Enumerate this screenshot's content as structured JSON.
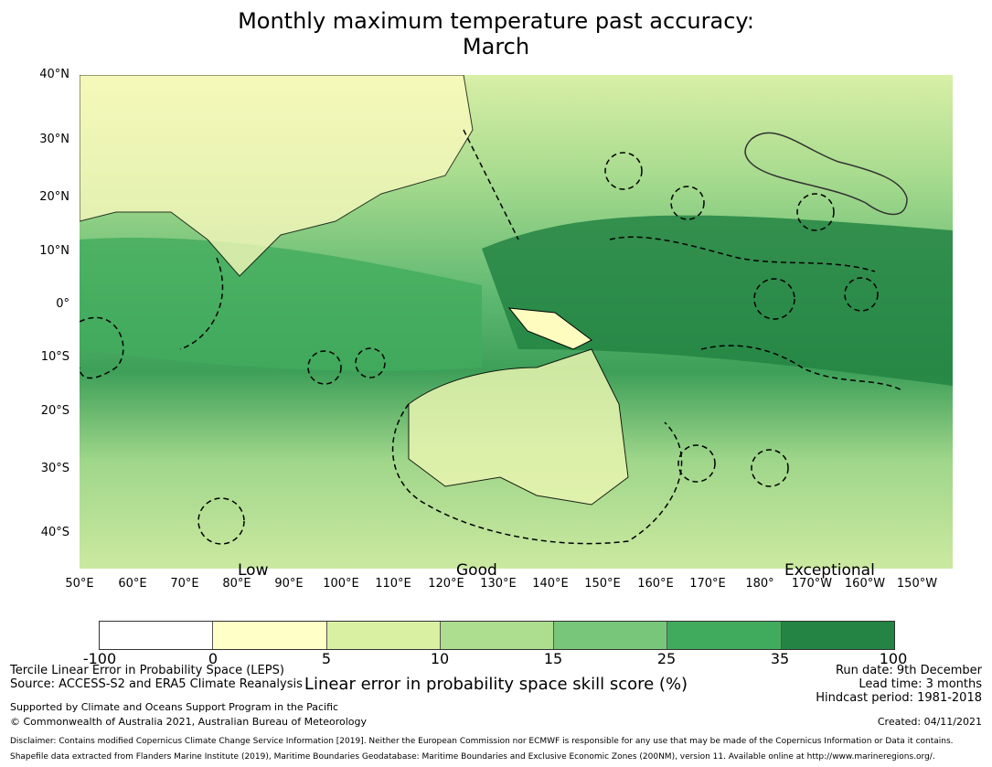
{
  "title_line1": "Monthly maximum temperature past accuracy:",
  "title_line2": "March",
  "lat_labels": [
    "40°N",
    "30°N",
    "20°N",
    "10°N",
    "0°",
    "10°S",
    "20°S",
    "30°S",
    "40°S"
  ],
  "lon_labels": [
    "50°E",
    "60°E",
    "70°E",
    "80°E",
    "90°E",
    "100°E",
    "110°E",
    "120°E",
    "130°E",
    "140°E",
    "150°E",
    "160°E",
    "170°E",
    "180°",
    "170°W",
    "160°W",
    "150°W"
  ],
  "categories": [
    "Low",
    "Good",
    "Exceptional"
  ],
  "colorbar": {
    "colors": [
      "#ffffff",
      "#ffffc8",
      "#d9f0a3",
      "#addd8e",
      "#78c679",
      "#41ab5d",
      "#238443"
    ],
    "ticks": [
      "-100",
      "0",
      "5",
      "10",
      "15",
      "25",
      "35",
      "100"
    ],
    "label": "Linear error in probability space skill score (%)"
  },
  "left_info": {
    "line1": "Tercile Linear Error in Probability Space (LEPS)",
    "line2": "Source: ACCESS-S2 and ERA5 Climate Reanalysis",
    "line3": "Supported by Climate and Oceans Support Program in the Pacific",
    "line4": "© Commonwealth of Australia 2021, Australian Bureau of Meteorology"
  },
  "right_info": {
    "run_date": "Run date: 9th December",
    "lead_time": "Lead time: 3 months",
    "hindcast": "Hindcast period: 1981-2018",
    "created": "Created: 04/11/2021"
  },
  "disclaimer1": "Disclaimer: Contains modified Copernicus Climate Change Service Information [2019]. Neither the European Commission nor ECMWF is responsible for any use that may be made of the Copernicus Information or Data it contains.",
  "disclaimer2": "Shapefile data extracted from Flanders Marine Institute (2019), Maritime Boundaries Geodatabase: Maritime Boundaries and Exclusive Economic Zones (200NM), version 11. Available online at http://www.marineregions.org/."
}
